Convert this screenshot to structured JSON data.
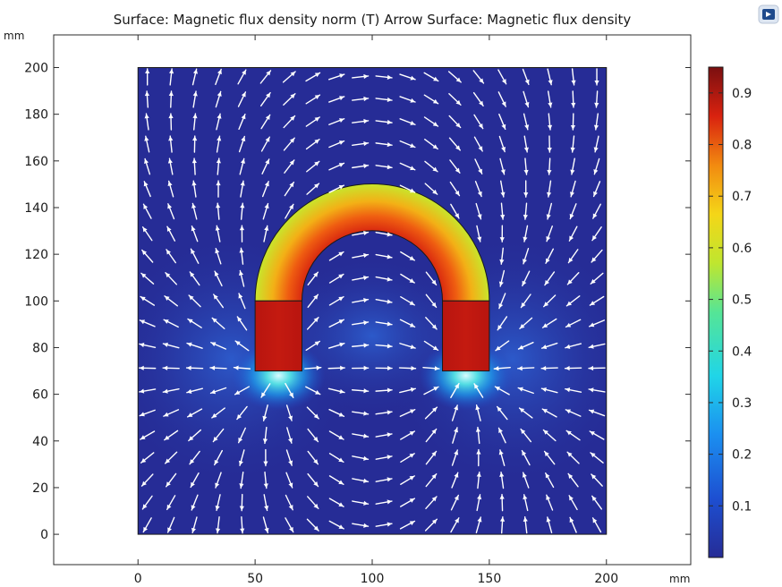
{
  "chart_data": {
    "type": "heatmap",
    "title": "Surface: Magnetic flux density norm (T)  Arrow Surface: Magnetic flux density",
    "x_unit": "mm",
    "y_unit": "mm",
    "xlim": [
      -36,
      236
    ],
    "ylim": [
      -13,
      214
    ],
    "domain_x": [
      0,
      200
    ],
    "domain_y": [
      0,
      200
    ],
    "x_ticks": [
      0,
      50,
      100,
      150,
      200
    ],
    "y_ticks": [
      0,
      20,
      40,
      60,
      80,
      100,
      120,
      140,
      160,
      180,
      200
    ],
    "colorbar": {
      "min": 0.0,
      "max": 0.95,
      "ticks": [
        0.1,
        0.2,
        0.3,
        0.4,
        0.5,
        0.6,
        0.7,
        0.8,
        0.9
      ],
      "colormap": "rainbow"
    },
    "magnet": {
      "left_leg": {
        "x": [
          50,
          70
        ],
        "y": [
          70,
          100
        ]
      },
      "right_leg": {
        "x": [
          130,
          150
        ],
        "y": [
          70,
          100
        ]
      },
      "arc_center": [
        100,
        100
      ],
      "arc_inner_radius": 30,
      "arc_outer_radius": 50
    },
    "field_norm_levels": {
      "legs": 0.93,
      "arc_inner_edge": 0.85,
      "arc_outer_edge": 0.55,
      "pole_gap": 0.3,
      "background": 0.02
    },
    "arrows": "white arrows showing field direction on a regular grid"
  },
  "icons": {
    "corner": "comsol-logo-icon"
  }
}
